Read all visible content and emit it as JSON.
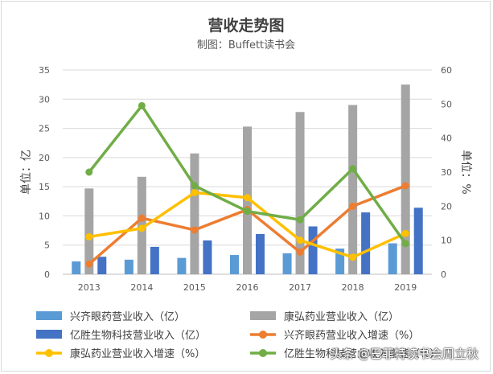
{
  "chart_data": {
    "type": "bar+line",
    "title": "营收走势图",
    "subtitle": "制图：Buffett读书会",
    "categories": [
      "2013",
      "2014",
      "2015",
      "2016",
      "2017",
      "2018",
      "2019"
    ],
    "left_axis": {
      "label": "单位：亿",
      "min": 0,
      "max": 35,
      "ticks": [
        0,
        5,
        10,
        15,
        20,
        25,
        30,
        35
      ]
    },
    "right_axis": {
      "label": "单位：%",
      "min": 0,
      "max": 60,
      "ticks": [
        0,
        10,
        20,
        30,
        40,
        50,
        60
      ]
    },
    "bar_series": [
      {
        "name": "兴齐眼药营业收入（亿）",
        "color": "#5b9bd5",
        "values": [
          2.2,
          2.5,
          2.8,
          3.3,
          3.6,
          4.4,
          5.3
        ]
      },
      {
        "name": "康弘药业营业收入（亿）",
        "color": "#a5a5a5",
        "values": [
          14.7,
          16.7,
          20.7,
          25.3,
          27.8,
          29.0,
          32.5
        ]
      },
      {
        "name": "亿胜生物科技营业收入（亿）",
        "color": "#4472c4",
        "values": [
          3.0,
          4.7,
          5.8,
          6.9,
          8.2,
          10.6,
          11.4
        ]
      }
    ],
    "line_series": [
      {
        "name": "兴齐眼药营业收入增速（%）",
        "color": "#ed7d31",
        "values": [
          3,
          16.5,
          13,
          19,
          6.5,
          20,
          26
        ]
      },
      {
        "name": "康弘药业营业收入增速（%）",
        "color": "#ffc000",
        "values": [
          11,
          13.5,
          24,
          22.5,
          10,
          5,
          12
        ]
      },
      {
        "name": "亿胜生物科技营业收入增速（%）",
        "color": "#70ad47",
        "values": [
          30,
          49.5,
          26,
          18.5,
          16,
          31,
          9
        ]
      }
    ]
  },
  "watermark": "头条 @巴菲特读书会周立秋"
}
